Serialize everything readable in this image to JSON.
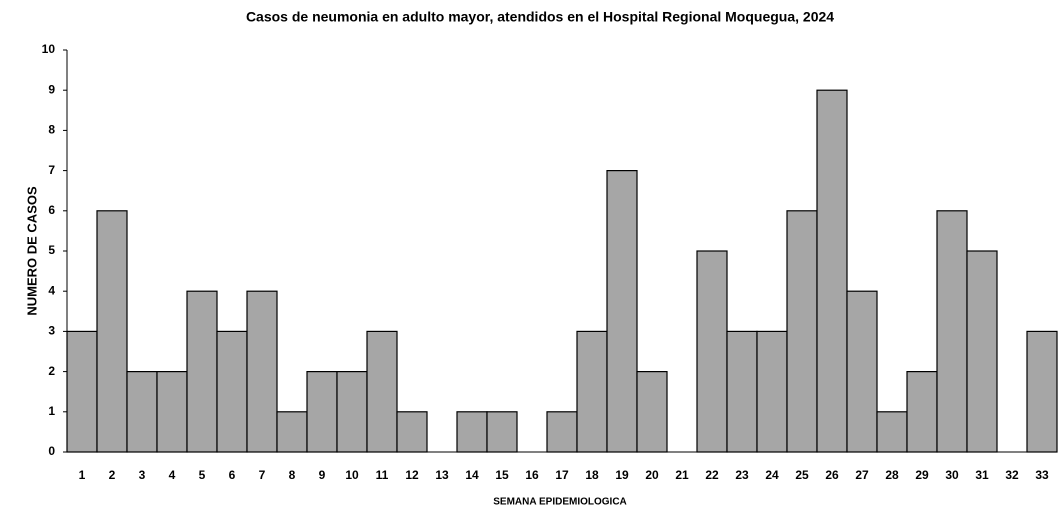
{
  "chart_data": {
    "type": "bar",
    "title": "Casos de neumonia en adulto mayor, atendidos en el Hospital Regional Moquegua, 2024",
    "x_label": "SEMANA EPIDEMIOLOGICA",
    "y_label": "NUMERO DE CASOS",
    "categories": [
      "1",
      "2",
      "3",
      "4",
      "5",
      "6",
      "7",
      "8",
      "9",
      "10",
      "11",
      "12",
      "13",
      "14",
      "15",
      "16",
      "17",
      "18",
      "19",
      "20",
      "21",
      "22",
      "23",
      "24",
      "25",
      "26",
      "27",
      "28",
      "29",
      "30",
      "31",
      "32",
      "33"
    ],
    "values": [
      3,
      6,
      2,
      2,
      4,
      3,
      4,
      1,
      2,
      2,
      3,
      1,
      0,
      1,
      1,
      0,
      1,
      3,
      7,
      2,
      0,
      5,
      3,
      3,
      6,
      9,
      4,
      1,
      2,
      6,
      5,
      0,
      3
    ],
    "color": "#a6a6a6",
    "ylim": [
      0,
      10
    ],
    "yticks": [
      0,
      1,
      2,
      3,
      4,
      5,
      6,
      7,
      8,
      9,
      10
    ],
    "grid": false
  }
}
